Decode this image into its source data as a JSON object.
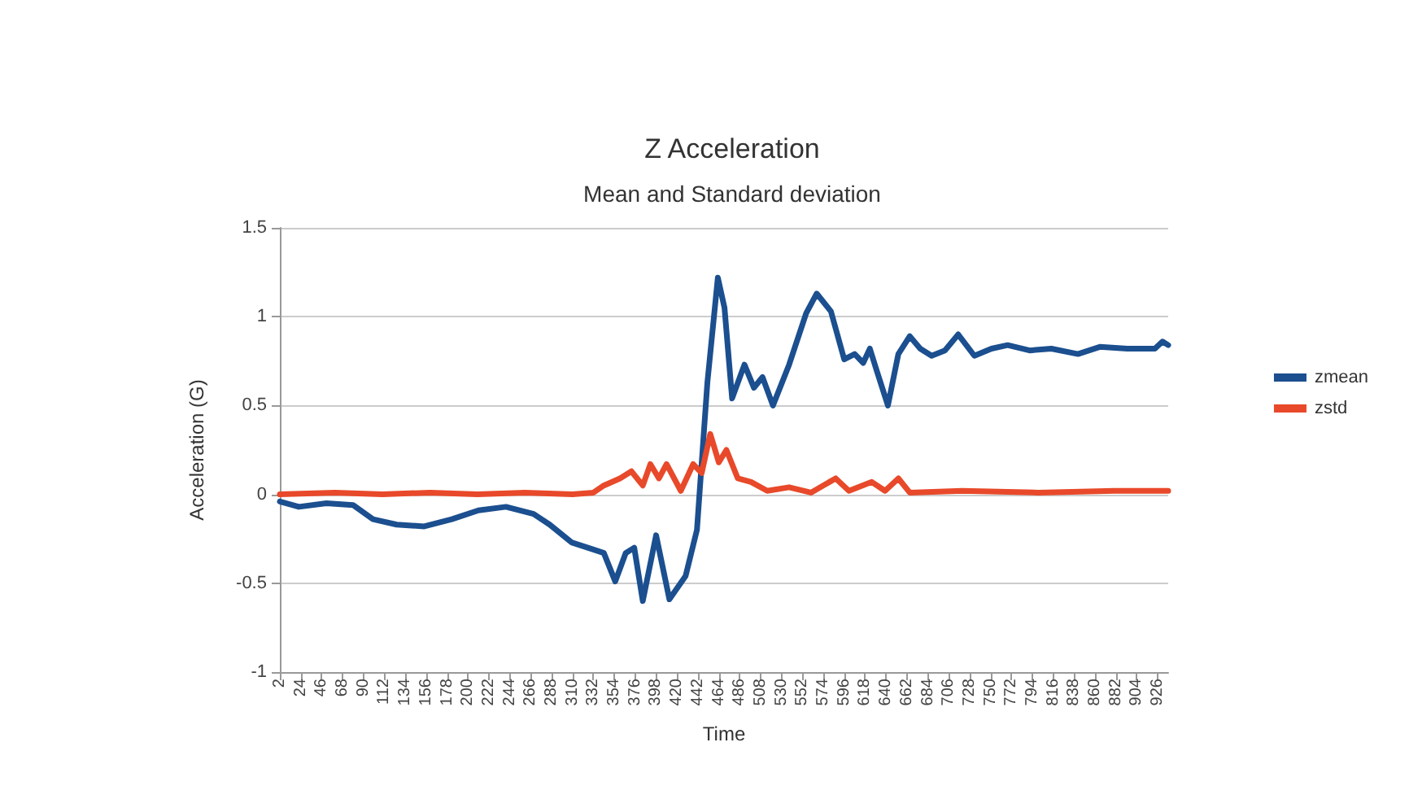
{
  "chart_data": {
    "type": "line",
    "title": "Z Acceleration",
    "subtitle": "Mean and Standard deviation",
    "xlabel": "Time",
    "ylabel": "Acceleration (G)",
    "xlim": [
      2,
      937
    ],
    "ylim": [
      -1,
      1.5
    ],
    "xticks": [
      2,
      24,
      46,
      68,
      90,
      112,
      134,
      156,
      178,
      200,
      222,
      244,
      266,
      288,
      310,
      332,
      354,
      376,
      398,
      420,
      442,
      464,
      486,
      508,
      530,
      552,
      574,
      596,
      618,
      640,
      662,
      684,
      706,
      728,
      750,
      772,
      794,
      816,
      838,
      860,
      882,
      904,
      926
    ],
    "yticks": [
      -1,
      -0.5,
      0,
      0.5,
      1,
      1.5
    ],
    "grid": "y",
    "legend": "right",
    "marker": "none",
    "line_style": "solid",
    "series": [
      {
        "name": "zmean",
        "color": "#1b4f8f",
        "x": [
          2,
          22,
          51,
          79,
          100,
          125,
          154,
          183,
          211,
          240,
          269,
          286,
          309,
          332,
          343,
          355,
          366,
          375,
          384,
          398,
          412,
          429,
          441,
          452,
          463,
          470,
          478,
          491,
          501,
          510,
          521,
          538,
          556,
          567,
          582,
          596,
          607,
          616,
          623,
          630,
          642,
          653,
          665,
          676,
          688,
          702,
          716,
          733,
          751,
          768,
          791,
          814,
          842,
          865,
          894,
          923,
          931,
          937
        ],
        "values": [
          -0.04,
          -0.07,
          -0.05,
          -0.06,
          -0.14,
          -0.17,
          -0.18,
          -0.14,
          -0.09,
          -0.07,
          -0.11,
          -0.17,
          -0.27,
          -0.31,
          -0.33,
          -0.49,
          -0.33,
          -0.3,
          -0.6,
          -0.23,
          -0.59,
          -0.46,
          -0.2,
          0.63,
          1.22,
          1.05,
          0.54,
          0.73,
          0.6,
          0.66,
          0.5,
          0.73,
          1.02,
          1.13,
          1.03,
          0.76,
          0.79,
          0.74,
          0.82,
          0.7,
          0.5,
          0.79,
          0.89,
          0.82,
          0.78,
          0.81,
          0.9,
          0.78,
          0.82,
          0.84,
          0.81,
          0.82,
          0.79,
          0.83,
          0.82,
          0.82,
          0.86,
          0.84
        ]
      },
      {
        "name": "zstd",
        "color": "#e8492a",
        "x": [
          2,
          60,
          110,
          160,
          210,
          260,
          310,
          332,
          343,
          360,
          372,
          384,
          392,
          401,
          409,
          424,
          437,
          446,
          455,
          464,
          472,
          484,
          498,
          515,
          538,
          561,
          587,
          601,
          625,
          639,
          653,
          665,
          720,
          800,
          880,
          937
        ],
        "values": [
          0.0,
          0.01,
          0.0,
          0.01,
          0.0,
          0.01,
          0.0,
          0.01,
          0.05,
          0.09,
          0.13,
          0.05,
          0.17,
          0.09,
          0.17,
          0.02,
          0.17,
          0.12,
          0.34,
          0.18,
          0.25,
          0.09,
          0.07,
          0.02,
          0.04,
          0.01,
          0.09,
          0.02,
          0.07,
          0.02,
          0.09,
          0.01,
          0.02,
          0.01,
          0.02,
          0.02
        ]
      }
    ]
  }
}
